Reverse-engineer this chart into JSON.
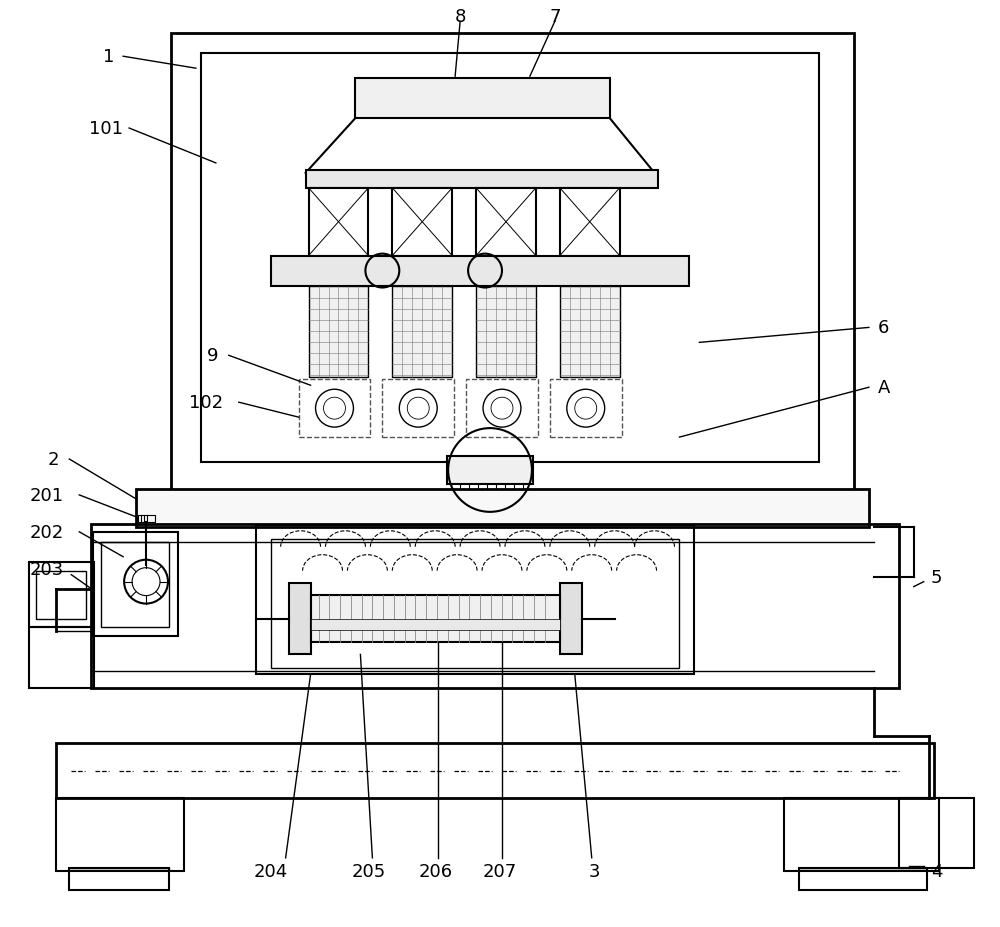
{
  "bg_color": "#ffffff",
  "line_color": "#000000",
  "lw_thick": 2.0,
  "lw_med": 1.5,
  "lw_thin": 1.0,
  "lw_vt": 0.7,
  "label_fontsize": 13
}
